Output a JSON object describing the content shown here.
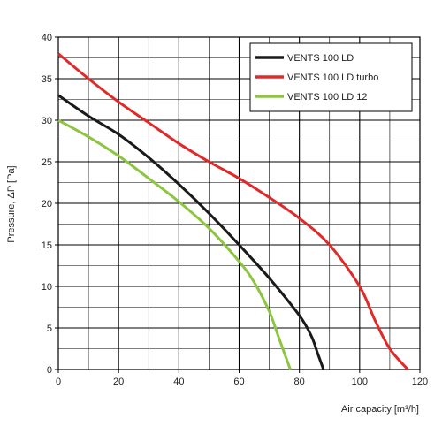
{
  "chart_data": {
    "type": "line",
    "title": "",
    "xlabel": "Air capacity [m³/h]",
    "ylabel": "Pressure, ΔP [Pa]",
    "xlim": [
      0,
      120
    ],
    "ylim": [
      0,
      40
    ],
    "x_ticks": [
      0,
      20,
      40,
      60,
      80,
      100,
      120
    ],
    "y_ticks": [
      0,
      5,
      10,
      15,
      20,
      25,
      30,
      35,
      40
    ],
    "grid": true,
    "legend_position": "top-right",
    "series": [
      {
        "name": "VENTS 100 LD",
        "color": "#1a1a1a",
        "points": [
          [
            0,
            33
          ],
          [
            10,
            30.5
          ],
          [
            20,
            28.3
          ],
          [
            30,
            25.5
          ],
          [
            40,
            22.3
          ],
          [
            50,
            18.8
          ],
          [
            60,
            15
          ],
          [
            70,
            11
          ],
          [
            80,
            6.5
          ],
          [
            84,
            4
          ],
          [
            86,
            2
          ],
          [
            88,
            0
          ]
        ]
      },
      {
        "name": "VENTS 100 LD turbo",
        "color": "#e02a2a",
        "points": [
          [
            0,
            38
          ],
          [
            10,
            35
          ],
          [
            20,
            32.2
          ],
          [
            30,
            29.7
          ],
          [
            40,
            27.2
          ],
          [
            50,
            25
          ],
          [
            60,
            23
          ],
          [
            70,
            20.7
          ],
          [
            80,
            18.2
          ],
          [
            90,
            15
          ],
          [
            100,
            10
          ],
          [
            105,
            6
          ],
          [
            110,
            2.5
          ],
          [
            116,
            0
          ]
        ]
      },
      {
        "name": "VENTS 100 LD  12",
        "color": "#8cc63f",
        "points": [
          [
            0,
            30
          ],
          [
            10,
            28
          ],
          [
            20,
            25.7
          ],
          [
            30,
            23
          ],
          [
            40,
            20.2
          ],
          [
            50,
            17
          ],
          [
            60,
            13
          ],
          [
            65,
            10.5
          ],
          [
            70,
            7
          ],
          [
            73,
            4
          ],
          [
            75,
            2
          ],
          [
            77,
            0
          ]
        ]
      }
    ]
  }
}
